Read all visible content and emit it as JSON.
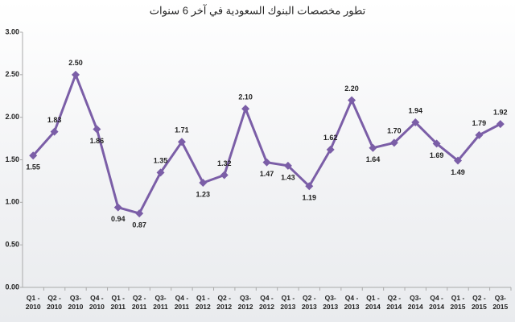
{
  "chart_data": {
    "type": "line",
    "title": "تطور مخصصات البنوك السعودية في آخر 6 سنوات",
    "categories": [
      "Q1 - 2010",
      "Q2 - 2010",
      "Q3- 2010",
      "Q4 - 2010",
      "Q1 - 2011",
      "Q2 - 2011",
      "Q3- 2011",
      "Q4 - 2011",
      "Q1 - 2012",
      "Q2 - 2012",
      "Q3- 2012",
      "Q4 - 2012",
      "Q1 - 2013",
      "Q2 - 2013",
      "Q3- 2013",
      "Q4 - 2013",
      "Q1 - 2014",
      "Q2 - 2014",
      "Q3- 2014",
      "Q4 - 2014",
      "Q1 - 2015",
      "Q2 - 2015",
      "Q3- 2015"
    ],
    "values": [
      1.55,
      1.83,
      2.5,
      1.86,
      0.94,
      0.87,
      1.35,
      1.71,
      1.23,
      1.32,
      2.1,
      1.47,
      1.43,
      1.19,
      1.62,
      2.2,
      1.64,
      1.7,
      1.94,
      1.69,
      1.49,
      1.79,
      1.92
    ],
    "value_labels": [
      "1.55",
      "1.83",
      "2.50",
      "1.86",
      "0.94",
      "0.87",
      "1.35",
      "1.71",
      "1.23",
      "1.32",
      "2.10",
      "1.47",
      "1.43",
      "1.19",
      "1.62",
      "2.20",
      "1.64",
      "1.70",
      "1.94",
      "1.69",
      "1.49",
      "1.79",
      "1.92"
    ],
    "color": "#7b5ea7",
    "ylim": [
      0,
      3
    ],
    "yticks": [
      {
        "value": 0,
        "label": "0.00"
      },
      {
        "value": 0.5,
        "label": "0.50"
      },
      {
        "value": 1,
        "label": "1.00"
      },
      {
        "value": 1.5,
        "label": "1.50"
      },
      {
        "value": 2,
        "label": "2.00"
      },
      {
        "value": 2.5,
        "label": "2.50"
      },
      {
        "value": 3,
        "label": "3.00"
      }
    ]
  }
}
